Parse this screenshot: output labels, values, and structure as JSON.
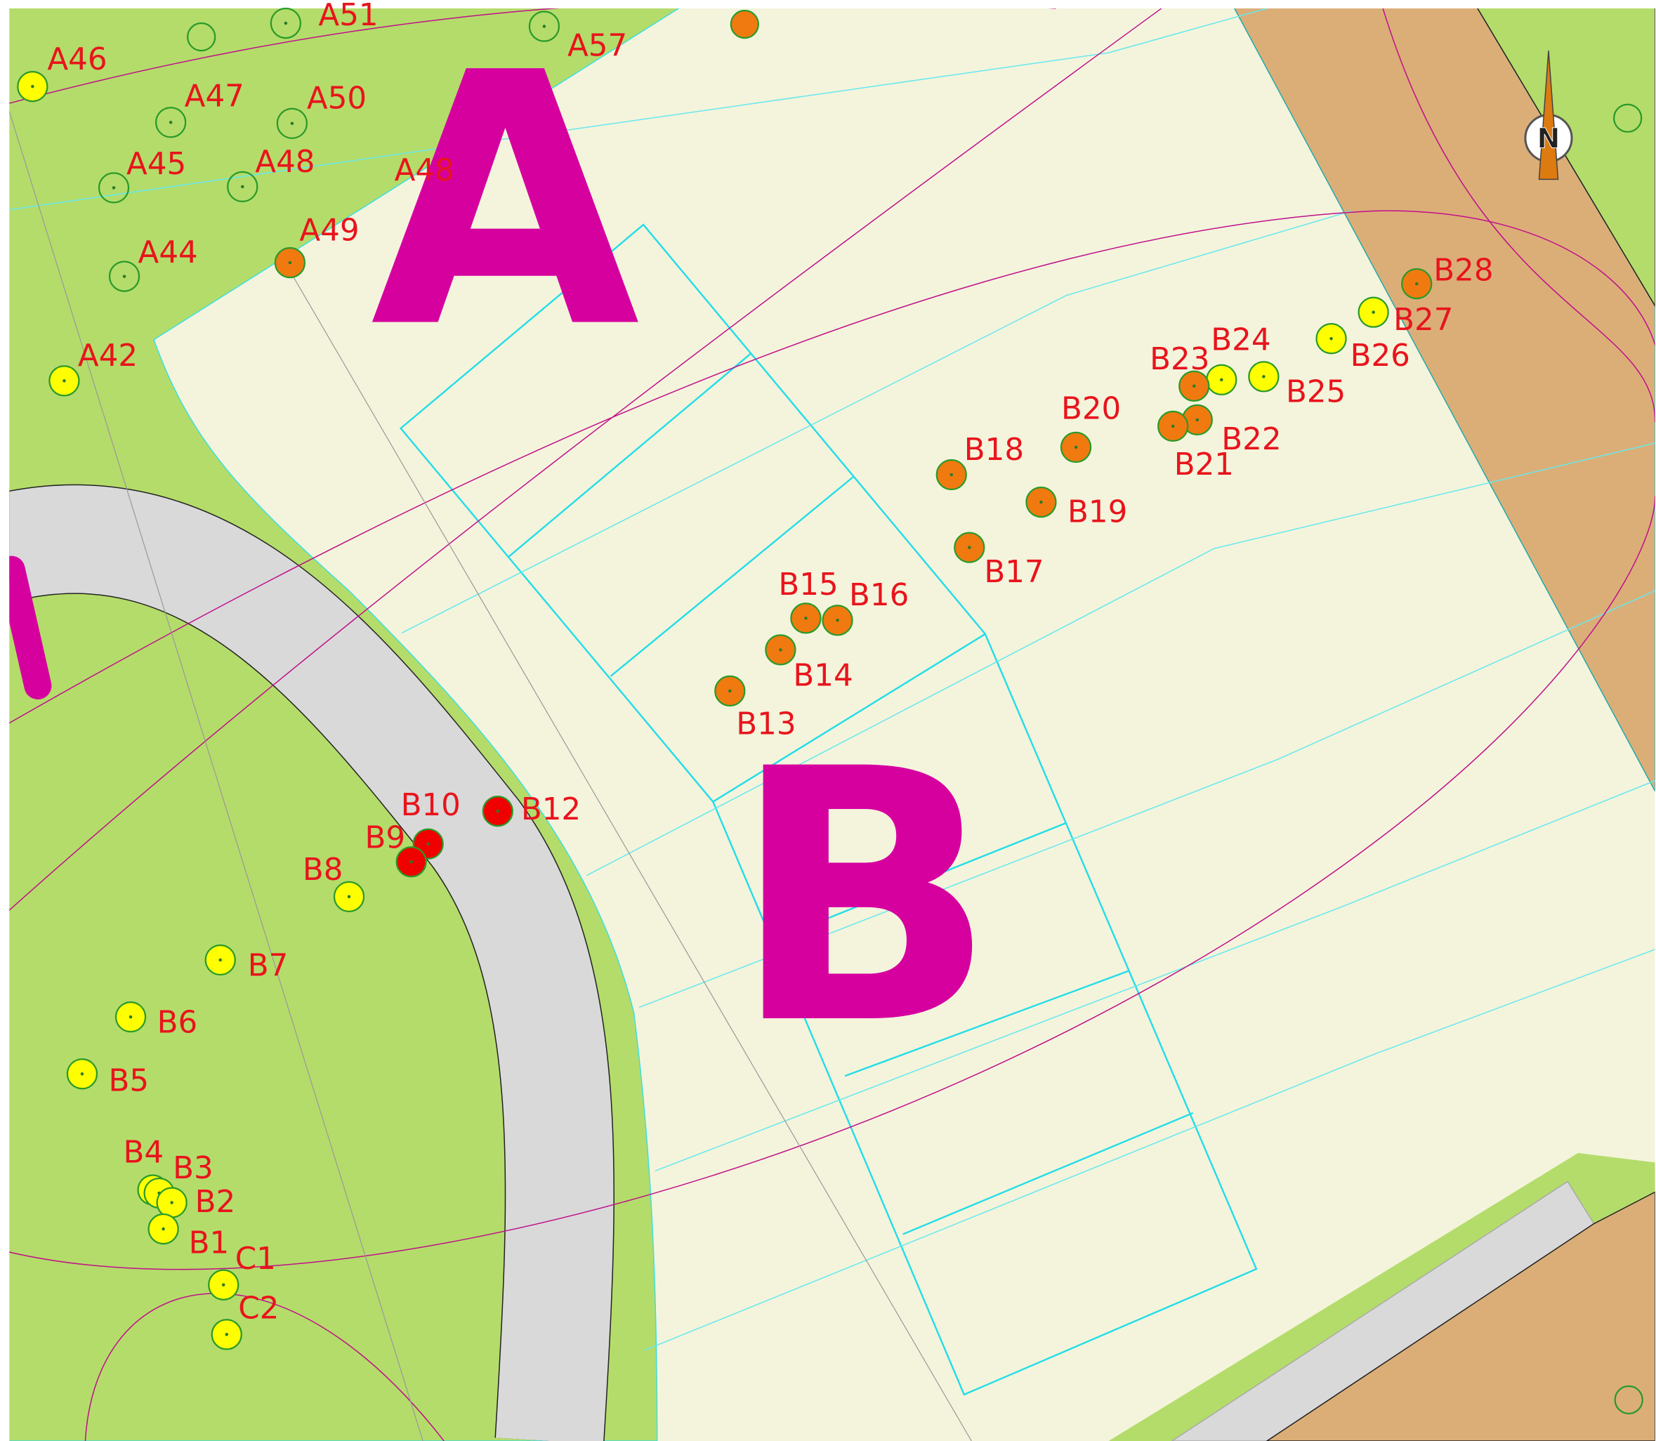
{
  "zones": [
    "A",
    "B"
  ],
  "compass": "N",
  "trees": [
    {
      "label": "A46",
      "color": "#ffff00"
    },
    {
      "label": "A51",
      "color": "none"
    },
    {
      "label": "A57",
      "color": "none"
    },
    {
      "label": "A47",
      "color": "none"
    },
    {
      "label": "A50",
      "color": "none"
    },
    {
      "label": "A45",
      "color": "none"
    },
    {
      "label": "A48",
      "color": "none"
    },
    {
      "label": "A48",
      "color": "none"
    },
    {
      "label": "A49",
      "color": "#f07a10"
    },
    {
      "label": "A44",
      "color": "none"
    },
    {
      "label": "A42",
      "color": "#ffff00"
    },
    {
      "label": "B28",
      "color": "#f07a10"
    },
    {
      "label": "B27",
      "color": "#ffff00"
    },
    {
      "label": "B26",
      "color": "#ffff00"
    },
    {
      "label": "B25",
      "color": "#ffff00"
    },
    {
      "label": "B24",
      "color": "#ffff00"
    },
    {
      "label": "B23",
      "color": "#f07a10"
    },
    {
      "label": "B22",
      "color": "#f07a10"
    },
    {
      "label": "B21",
      "color": "#f07a10"
    },
    {
      "label": "B20",
      "color": "#f07a10"
    },
    {
      "label": "B18",
      "color": "#f07a10"
    },
    {
      "label": "B19",
      "color": "#f07a10"
    },
    {
      "label": "B17",
      "color": "#f07a10"
    },
    {
      "label": "B15",
      "color": "#f07a10"
    },
    {
      "label": "B16",
      "color": "#f07a10"
    },
    {
      "label": "B14",
      "color": "#f07a10"
    },
    {
      "label": "B13",
      "color": "#f07a10"
    },
    {
      "label": "B12",
      "color": "#f00000"
    },
    {
      "label": "B10",
      "color": "#f00000"
    },
    {
      "label": "B9",
      "color": "#f00000"
    },
    {
      "label": "B8",
      "color": "#ffff00"
    },
    {
      "label": "B7",
      "color": "#ffff00"
    },
    {
      "label": "B6",
      "color": "#ffff00"
    },
    {
      "label": "B5",
      "color": "#ffff00"
    },
    {
      "label": "B4",
      "color": "#ffff00"
    },
    {
      "label": "B3",
      "color": "#ffff00"
    },
    {
      "label": "B2",
      "color": "#ffff00"
    },
    {
      "label": "B1",
      "color": "#ffff00"
    },
    {
      "label": "C1",
      "color": "#ffff00"
    },
    {
      "label": "C2",
      "color": "#ffff00"
    }
  ]
}
